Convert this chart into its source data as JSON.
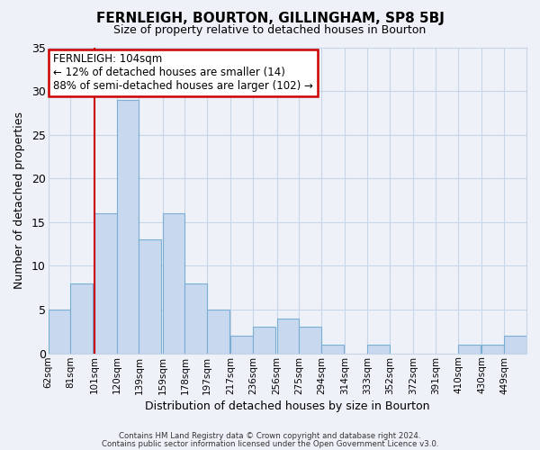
{
  "title": "FERNLEIGH, BOURTON, GILLINGHAM, SP8 5BJ",
  "subtitle": "Size of property relative to detached houses in Bourton",
  "xlabel": "Distribution of detached houses by size in Bourton",
  "ylabel": "Number of detached properties",
  "bar_labels": [
    "62sqm",
    "81sqm",
    "101sqm",
    "120sqm",
    "139sqm",
    "159sqm",
    "178sqm",
    "197sqm",
    "217sqm",
    "236sqm",
    "256sqm",
    "275sqm",
    "294sqm",
    "314sqm",
    "333sqm",
    "352sqm",
    "372sqm",
    "391sqm",
    "410sqm",
    "430sqm",
    "449sqm"
  ],
  "bar_values": [
    5,
    8,
    16,
    29,
    13,
    16,
    8,
    5,
    2,
    3,
    4,
    3,
    1,
    0,
    1,
    0,
    0,
    0,
    1,
    1,
    2
  ],
  "bin_width": 19,
  "bin_starts": [
    62,
    81,
    101,
    120,
    139,
    159,
    178,
    197,
    217,
    236,
    256,
    275,
    294,
    314,
    333,
    352,
    372,
    391,
    410,
    430,
    449
  ],
  "bar_color": "#c8d8ef",
  "bar_edge_color": "#7aafd4",
  "grid_color": "#c8d4e8",
  "background_color": "#eef2f8",
  "vline_x": 101,
  "vline_color": "#cc0000",
  "annotation_title": "FERNLEIGH: 104sqm",
  "annotation_line1": "← 12% of detached houses are smaller (14)",
  "annotation_line2": "88% of semi-detached houses are larger (102) →",
  "annotation_box_color": "#ffffff",
  "annotation_box_edge": "#cc0000",
  "ylim": [
    0,
    35
  ],
  "yticks": [
    0,
    5,
    10,
    15,
    20,
    25,
    30,
    35
  ],
  "footer1": "Contains HM Land Registry data © Crown copyright and database right 2024.",
  "footer2": "Contains public sector information licensed under the Open Government Licence v3.0."
}
